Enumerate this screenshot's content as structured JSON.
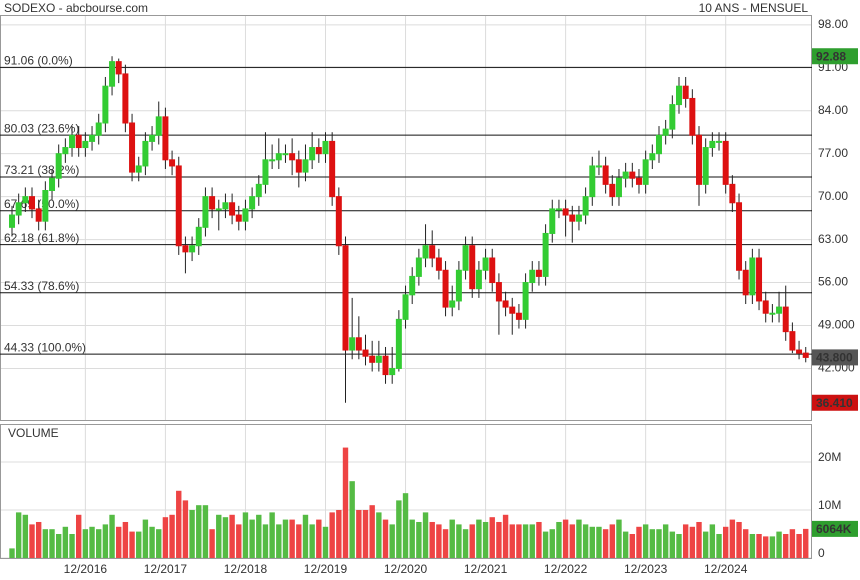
{
  "chart_data": {
    "type": "candlestick",
    "title": "SODEXO - abcbourse.com",
    "subtitle": "10 ANS - MENSUEL",
    "up_color": "#33cc33",
    "down_color": "#dd1111",
    "categories": [
      null,
      null,
      null,
      null,
      null,
      null,
      null,
      null,
      null,
      null,
      null,
      "12/2016",
      null,
      null,
      null,
      null,
      null,
      null,
      null,
      null,
      null,
      null,
      null,
      "12/2017",
      null,
      null,
      null,
      null,
      null,
      null,
      null,
      null,
      null,
      null,
      null,
      "12/2018",
      null,
      null,
      null,
      null,
      null,
      null,
      null,
      null,
      null,
      null,
      null,
      "12/2019",
      null,
      null,
      null,
      null,
      null,
      null,
      null,
      null,
      null,
      null,
      null,
      "12/2020",
      null,
      null,
      null,
      null,
      null,
      null,
      null,
      null,
      null,
      null,
      null,
      "12/2021",
      null,
      null,
      null,
      null,
      null,
      null,
      null,
      null,
      null,
      null,
      null,
      "12/2022",
      null,
      null,
      null,
      null,
      null,
      null,
      null,
      null,
      null,
      null,
      null,
      "12/2023",
      null,
      null,
      null,
      null,
      null,
      null,
      null,
      null,
      null,
      null,
      null,
      "12/2024",
      null,
      null,
      null,
      null,
      null,
      null,
      null,
      null,
      null,
      null,
      null,
      null
    ],
    "open": [
      65,
      67,
      69,
      70,
      68,
      66,
      71,
      73,
      77,
      78,
      80,
      78,
      79,
      80,
      82,
      88,
      92,
      90,
      82,
      74,
      75,
      79,
      80,
      83,
      76,
      75,
      62,
      61,
      62,
      65,
      70,
      68,
      68,
      69,
      67,
      66,
      68,
      70,
      72,
      76,
      76,
      77,
      77,
      76,
      74,
      76,
      78,
      77,
      79,
      70,
      62,
      45,
      47,
      45,
      44,
      43,
      44,
      41,
      42,
      50,
      54,
      57,
      60,
      62,
      60,
      58,
      52,
      53,
      58,
      62,
      55,
      58,
      60,
      56,
      53,
      52,
      51,
      50,
      56,
      58,
      57,
      64,
      68,
      68,
      67,
      66,
      67,
      70,
      75,
      75,
      72,
      70,
      73,
      74,
      73,
      72,
      76,
      77,
      80,
      81,
      85,
      88,
      86,
      80,
      72,
      78,
      79,
      79,
      72,
      69,
      58,
      54,
      60,
      53,
      51,
      51,
      52,
      48,
      45,
      44.5
    ],
    "close": [
      67,
      69,
      70,
      68,
      66,
      71,
      73,
      77,
      78,
      80,
      78,
      79,
      80,
      82,
      88,
      92,
      90,
      82,
      74,
      75,
      79,
      80,
      83,
      76,
      75,
      62,
      61,
      62,
      65,
      70,
      68,
      68,
      69,
      67,
      66,
      68,
      70,
      72,
      76,
      76,
      77,
      77,
      76,
      74,
      76,
      78,
      77,
      79,
      70,
      62,
      45,
      47,
      45,
      44,
      43,
      44,
      41,
      42,
      50,
      54,
      57,
      60,
      62,
      60,
      58,
      52,
      53,
      58,
      62,
      55,
      58,
      60,
      56,
      53,
      52,
      51,
      50,
      56,
      58,
      57,
      64,
      68,
      68,
      67,
      66,
      67,
      70,
      75,
      75,
      72,
      70,
      73,
      74,
      73,
      72,
      76,
      77,
      80,
      81,
      85,
      88,
      86,
      80,
      72,
      78,
      79,
      79,
      72,
      69,
      58,
      54,
      60,
      53,
      51,
      51,
      52,
      48,
      45,
      44.5,
      43.8
    ],
    "high": [
      68.5,
      70.5,
      71.5,
      71.5,
      69.5,
      72.5,
      74.5,
      78.5,
      79.5,
      81.5,
      81.5,
      80.5,
      81.5,
      83.5,
      89.5,
      92.88,
      92.5,
      91.5,
      83.5,
      76.5,
      80.5,
      81.5,
      85.5,
      84.5,
      77.5,
      76.5,
      63.5,
      63.5,
      66.5,
      71.5,
      71.5,
      69.5,
      70.5,
      70.5,
      68.5,
      69.5,
      71.5,
      73.5,
      80.5,
      78.5,
      79.5,
      78.5,
      79.5,
      77.5,
      78.5,
      80.5,
      79.5,
      80.5,
      80.5,
      71.5,
      63.5,
      53.5,
      50.5,
      47.5,
      46.5,
      46.5,
      45.5,
      45.5,
      51.5,
      55.5,
      58.5,
      61.5,
      65.5,
      64.5,
      61.5,
      59.5,
      55.5,
      59.5,
      63.5,
      63.5,
      59.5,
      61.5,
      61.5,
      57.5,
      54.5,
      53.5,
      52.5,
      57.5,
      59.5,
      59.5,
      65.5,
      69.5,
      69.5,
      69.5,
      68.5,
      68.5,
      71.5,
      76.5,
      77.5,
      76.5,
      73.5,
      74.5,
      75.5,
      75.5,
      74.5,
      77.5,
      78.5,
      81.5,
      82.5,
      86.5,
      89.5,
      89.5,
      87.5,
      81.5,
      79.5,
      80.5,
      80.5,
      80.5,
      73.5,
      70.5,
      59.5,
      61.5,
      61.5,
      54.5,
      52.5,
      54.5,
      55.5,
      49.5,
      46.5,
      45.5
    ],
    "low": [
      63.5,
      65.5,
      67.5,
      66.5,
      64.5,
      64.5,
      69.5,
      71.5,
      75.5,
      76.5,
      76.5,
      76.5,
      77.5,
      78.5,
      80.5,
      86.5,
      88.5,
      80.5,
      72.5,
      72.5,
      73.5,
      77.5,
      78.5,
      74.5,
      73.5,
      60.5,
      57.5,
      59.5,
      60.5,
      63.5,
      66.5,
      64.5,
      66.5,
      65.5,
      64.5,
      64.5,
      66.5,
      68.5,
      70.5,
      74.5,
      74.5,
      75.5,
      73.5,
      71.5,
      72.5,
      74.5,
      75.5,
      75.5,
      68.5,
      60.5,
      36.41,
      43.5,
      43.5,
      42.5,
      41.5,
      41.5,
      39.5,
      39.5,
      41.5,
      48.5,
      52.5,
      55.5,
      58.5,
      58.5,
      56.5,
      50.5,
      50.5,
      51.5,
      56.5,
      53.5,
      53.5,
      56.5,
      54.5,
      47.5,
      50.5,
      47.5,
      48.5,
      48.5,
      54.5,
      55.5,
      55.5,
      62.5,
      66.5,
      63.5,
      62.5,
      64.5,
      65.5,
      68.5,
      73.5,
      70.5,
      68.5,
      68.5,
      71.5,
      71.5,
      70.5,
      70.5,
      74.5,
      75.5,
      78.5,
      79.5,
      83.5,
      84.5,
      78.5,
      68.5,
      70.5,
      76.5,
      77.5,
      70.5,
      67.5,
      56.5,
      52.5,
      52.5,
      51.5,
      49.5,
      49.5,
      49.5,
      46.5,
      44.5,
      43.5,
      43.0
    ],
    "ylim": [
      33.6,
      99.6
    ],
    "yticks": [
      {
        "value": 98,
        "label": "98.00"
      },
      {
        "value": 91,
        "label": "91.00"
      },
      {
        "value": 84,
        "label": "84.00"
      },
      {
        "value": 77,
        "label": "77.00"
      },
      {
        "value": 70,
        "label": "70.00"
      },
      {
        "value": 63,
        "label": "63.00"
      },
      {
        "value": 56,
        "label": "56.00"
      },
      {
        "value": 49,
        "label": "49.000"
      },
      {
        "value": 42,
        "label": "42.000"
      }
    ],
    "grid": true,
    "annotations": [
      {
        "value": 91.06,
        "label": "91.06  (0.0%)"
      },
      {
        "value": 80.03,
        "label": "80.03  (23.6%)"
      },
      {
        "value": 73.21,
        "label": "73.21  (38.2%)"
      },
      {
        "value": 67.69,
        "label": "67.69  (50.0%)"
      },
      {
        "value": 62.18,
        "label": "62.18  (61.8%)"
      },
      {
        "value": 54.33,
        "label": "54.33  (78.6%)"
      },
      {
        "value": 44.33,
        "label": "44.33  (100.0%)"
      }
    ],
    "price_labels": [
      {
        "value": 92.88,
        "label": "92.88",
        "color": "#2e9e2e"
      },
      {
        "value": 36.41,
        "label": "36.410",
        "color": "#cc1111"
      },
      {
        "value": 43.8,
        "label": "43.800",
        "color": "#555555"
      }
    ],
    "volume": {
      "label": "VOLUME",
      "values": [
        2,
        9.5,
        9,
        7,
        7.5,
        6,
        6,
        5,
        6.5,
        5,
        9,
        6,
        6.5,
        6,
        7,
        9,
        6.5,
        7.5,
        5.5,
        5.5,
        8,
        6.5,
        6,
        8.5,
        9,
        14,
        12,
        10,
        11,
        11,
        6,
        9,
        8.5,
        9,
        7,
        9.5,
        8,
        9,
        7,
        9.5,
        7,
        8,
        8,
        7,
        9,
        7,
        8,
        6.5,
        9.5,
        10,
        23,
        16,
        10,
        10,
        11,
        9.5,
        8,
        7,
        12,
        13.5,
        8,
        7.5,
        9.5,
        7.5,
        7,
        6,
        8,
        7,
        6,
        7,
        8,
        7.5,
        8.5,
        7.5,
        9,
        7,
        7,
        7,
        7,
        7.5,
        5.5,
        6,
        7.5,
        8,
        7,
        8,
        7,
        6.5,
        6.5,
        6,
        7,
        8,
        5.5,
        5,
        6.5,
        7,
        6,
        6,
        7,
        5.5,
        5,
        7,
        6.5,
        7.5,
        5.5,
        7,
        5,
        6.5,
        8,
        7.5,
        6,
        5,
        5,
        4.5,
        4.5,
        5.5,
        5,
        6,
        5,
        6.064
      ],
      "ylim": [
        0,
        27.7
      ],
      "yticks": [
        0,
        {
          "value": 10,
          "label": "10M"
        },
        {
          "value": 20,
          "label": "20M"
        }
      ],
      "last_label": {
        "value": 6.064,
        "label": "6064K",
        "color": "#2e9e2e"
      }
    }
  }
}
